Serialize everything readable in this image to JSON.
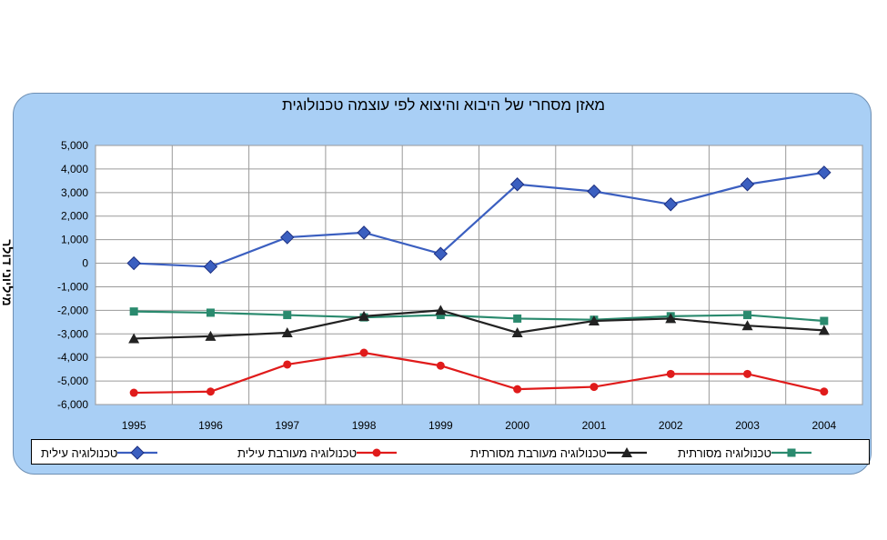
{
  "chart_data": {
    "type": "line",
    "title": "מאזן מסחרי של היבוא והיצוא לפי עוצמה טכנולוגית",
    "ylabel": "מיליוני דולר",
    "xlabel": "",
    "ylim": [
      -6000,
      5000
    ],
    "yticks": [
      5000,
      4000,
      3000,
      2000,
      1000,
      0,
      -1000,
      -2000,
      -3000,
      -4000,
      -5000,
      -6000
    ],
    "ytick_labels": [
      "5,000",
      "4,000",
      "3,000",
      "2,000",
      "1,000",
      "0",
      "-1,000",
      "-2,000",
      "-3,000",
      "-4,000",
      "-5,000",
      "-6,000"
    ],
    "categories": [
      "1995",
      "1996",
      "1997",
      "1998",
      "1999",
      "2000",
      "2001",
      "2002",
      "2003",
      "2004"
    ],
    "grid": true,
    "legend_position": "bottom",
    "series": [
      {
        "name": "טכנולוגיה עילית",
        "color": "#3b5fc0",
        "marker": "diamond",
        "values": [
          0,
          -150,
          1100,
          1300,
          400,
          3350,
          3050,
          2500,
          3350,
          3850
        ]
      },
      {
        "name": "טכנולוגיה מעורבת עילית",
        "color": "#e01b1b",
        "marker": "circle",
        "values": [
          -5500,
          -5450,
          -4300,
          -3800,
          -4350,
          -5350,
          -5250,
          -4700,
          -4700,
          -5450
        ]
      },
      {
        "name": "טכנולוגיה מעורבת מסורתית",
        "color": "#222222",
        "marker": "triangle",
        "values": [
          -3200,
          -3100,
          -2950,
          -2250,
          -2000,
          -2950,
          -2450,
          -2350,
          -2650,
          -2850
        ]
      },
      {
        "name": "טכנולוגיה מסורתית",
        "color": "#2a8a6e",
        "marker": "square",
        "values": [
          -2050,
          -2100,
          -2200,
          -2300,
          -2200,
          -2350,
          -2400,
          -2250,
          -2200,
          -2450
        ]
      }
    ]
  }
}
